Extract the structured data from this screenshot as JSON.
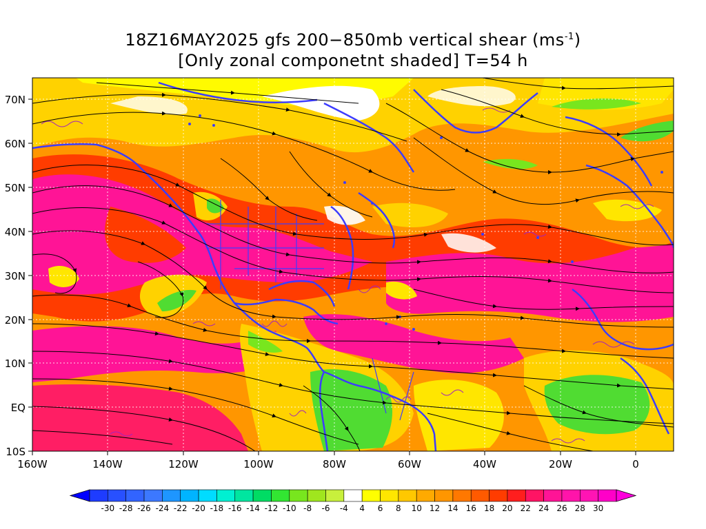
{
  "title": {
    "line1_pre": "18Z16MAY2025 gfs 200−850mb vertical shear (ms",
    "line1_sup": "-1",
    "line1_post": ")",
    "line2": "[Only zonal componetnt shaded] T=54 h"
  },
  "axes": {
    "lon_labels": [
      "160W",
      "140W",
      "120W",
      "100W",
      "80W",
      "60W",
      "40W",
      "20W",
      "0"
    ],
    "lat_labels": [
      "70N",
      "60N",
      "50N",
      "40N",
      "30N",
      "20N",
      "10N",
      "EQ",
      "10S"
    ],
    "lon_range": [
      -160,
      10
    ],
    "lat_range": [
      -10,
      75
    ]
  },
  "colorbar": {
    "labels": [
      "-30",
      "-28",
      "-26",
      "-24",
      "-22",
      "-20",
      "-18",
      "-16",
      "-14",
      "-12",
      "-10",
      "-8",
      "-6",
      "-4",
      "4",
      "6",
      "8",
      "10",
      "12",
      "14",
      "16",
      "18",
      "20",
      "22",
      "24",
      "26",
      "28",
      "30"
    ],
    "colors": [
      "#1e3cff",
      "#2850ff",
      "#3264ff",
      "#3c78ff",
      "#1e96ff",
      "#00b4ff",
      "#00dcff",
      "#00f0d2",
      "#00e6a0",
      "#00dc64",
      "#32e632",
      "#78e61e",
      "#a0e61e",
      "#c8f03c",
      "#ffffff",
      "#ffff00",
      "#ffe600",
      "#ffc800",
      "#ffaa00",
      "#ff9600",
      "#ff7800",
      "#ff5a00",
      "#ff3c00",
      "#ff1e1e",
      "#ff1464",
      "#ff1496",
      "#ff14aa",
      "#ff14b4",
      "#ff00c8"
    ],
    "min_color": "#0000ff",
    "max_color": "#ff00dc"
  },
  "colors": {
    "coastline": "#3c3cff",
    "contour": "#a020c0",
    "streamline": "#000000",
    "grid": "#ffffff"
  }
}
